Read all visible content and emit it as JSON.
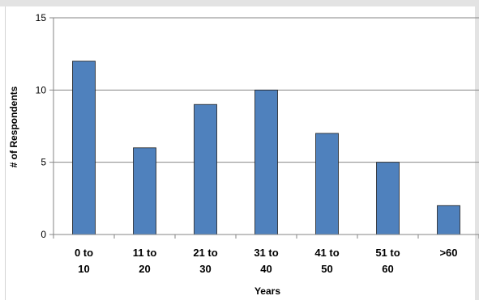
{
  "chart_data": {
    "type": "bar",
    "categories": [
      [
        "0 to",
        "10"
      ],
      [
        "11 to",
        "20"
      ],
      [
        "21 to",
        "30"
      ],
      [
        "31 to",
        "40"
      ],
      [
        "41 to",
        "50"
      ],
      [
        "51 to",
        "60"
      ],
      [
        ">60"
      ]
    ],
    "values": [
      12,
      6,
      9,
      10,
      7,
      5,
      2
    ],
    "xlabel": "Years",
    "ylabel": "# of Respondents",
    "ylim": [
      0,
      15
    ],
    "yticks": [
      "0",
      "5",
      "10",
      "15"
    ],
    "grid": true,
    "colors": {
      "bar": "#4f81bd",
      "bar_stroke": "#1f1f1f",
      "grid": "#868686"
    }
  }
}
